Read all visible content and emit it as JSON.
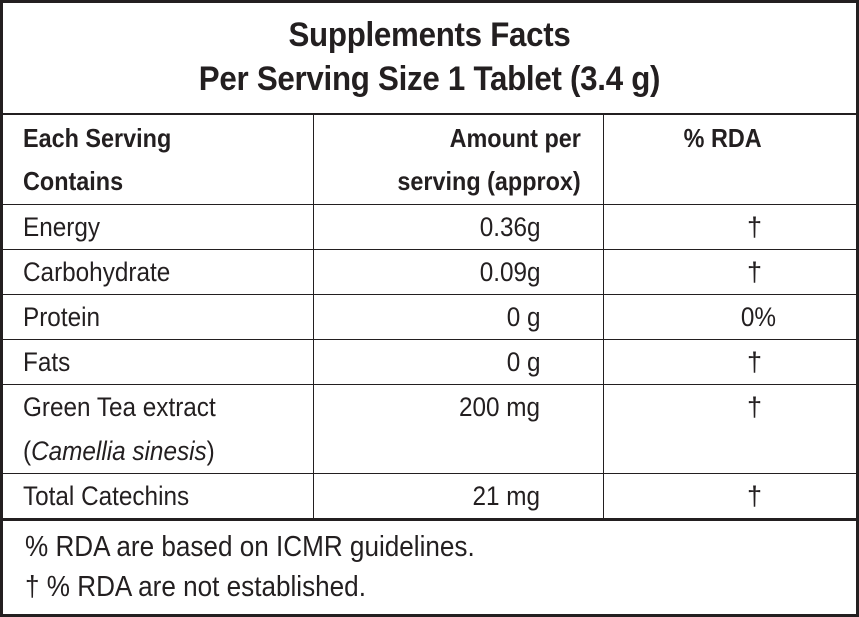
{
  "title": {
    "line1": "Supplements Facts",
    "line2": "Per Serving Size 1 Tablet (3.4 g)"
  },
  "table": {
    "headers": {
      "col1_line1": "Each Serving",
      "col1_line2": "Contains",
      "col2_line1": "Amount per",
      "col2_line2": "serving (approx)",
      "col3": "% RDA"
    },
    "rows": [
      {
        "name": "Energy",
        "amount": "0.36g",
        "rda": "†"
      },
      {
        "name": "Carbohydrate",
        "amount": "0.09g",
        "rda": "†"
      },
      {
        "name": "Protein",
        "amount": "0 g",
        "rda": "0%"
      },
      {
        "name": "Fats",
        "amount": "0 g",
        "rda": "†"
      },
      {
        "name": "Green Tea extract",
        "name_sub_open": "(",
        "name_sub_italic": "Camellia sinesis",
        "name_sub_close": ")",
        "amount": "200 mg",
        "rda": "†"
      },
      {
        "name": "Total Catechins",
        "amount": "21 mg",
        "rda": "†"
      }
    ]
  },
  "footer": {
    "line1": "% RDA are based on ICMR guidelines.",
    "line2": "† % RDA are not established."
  }
}
